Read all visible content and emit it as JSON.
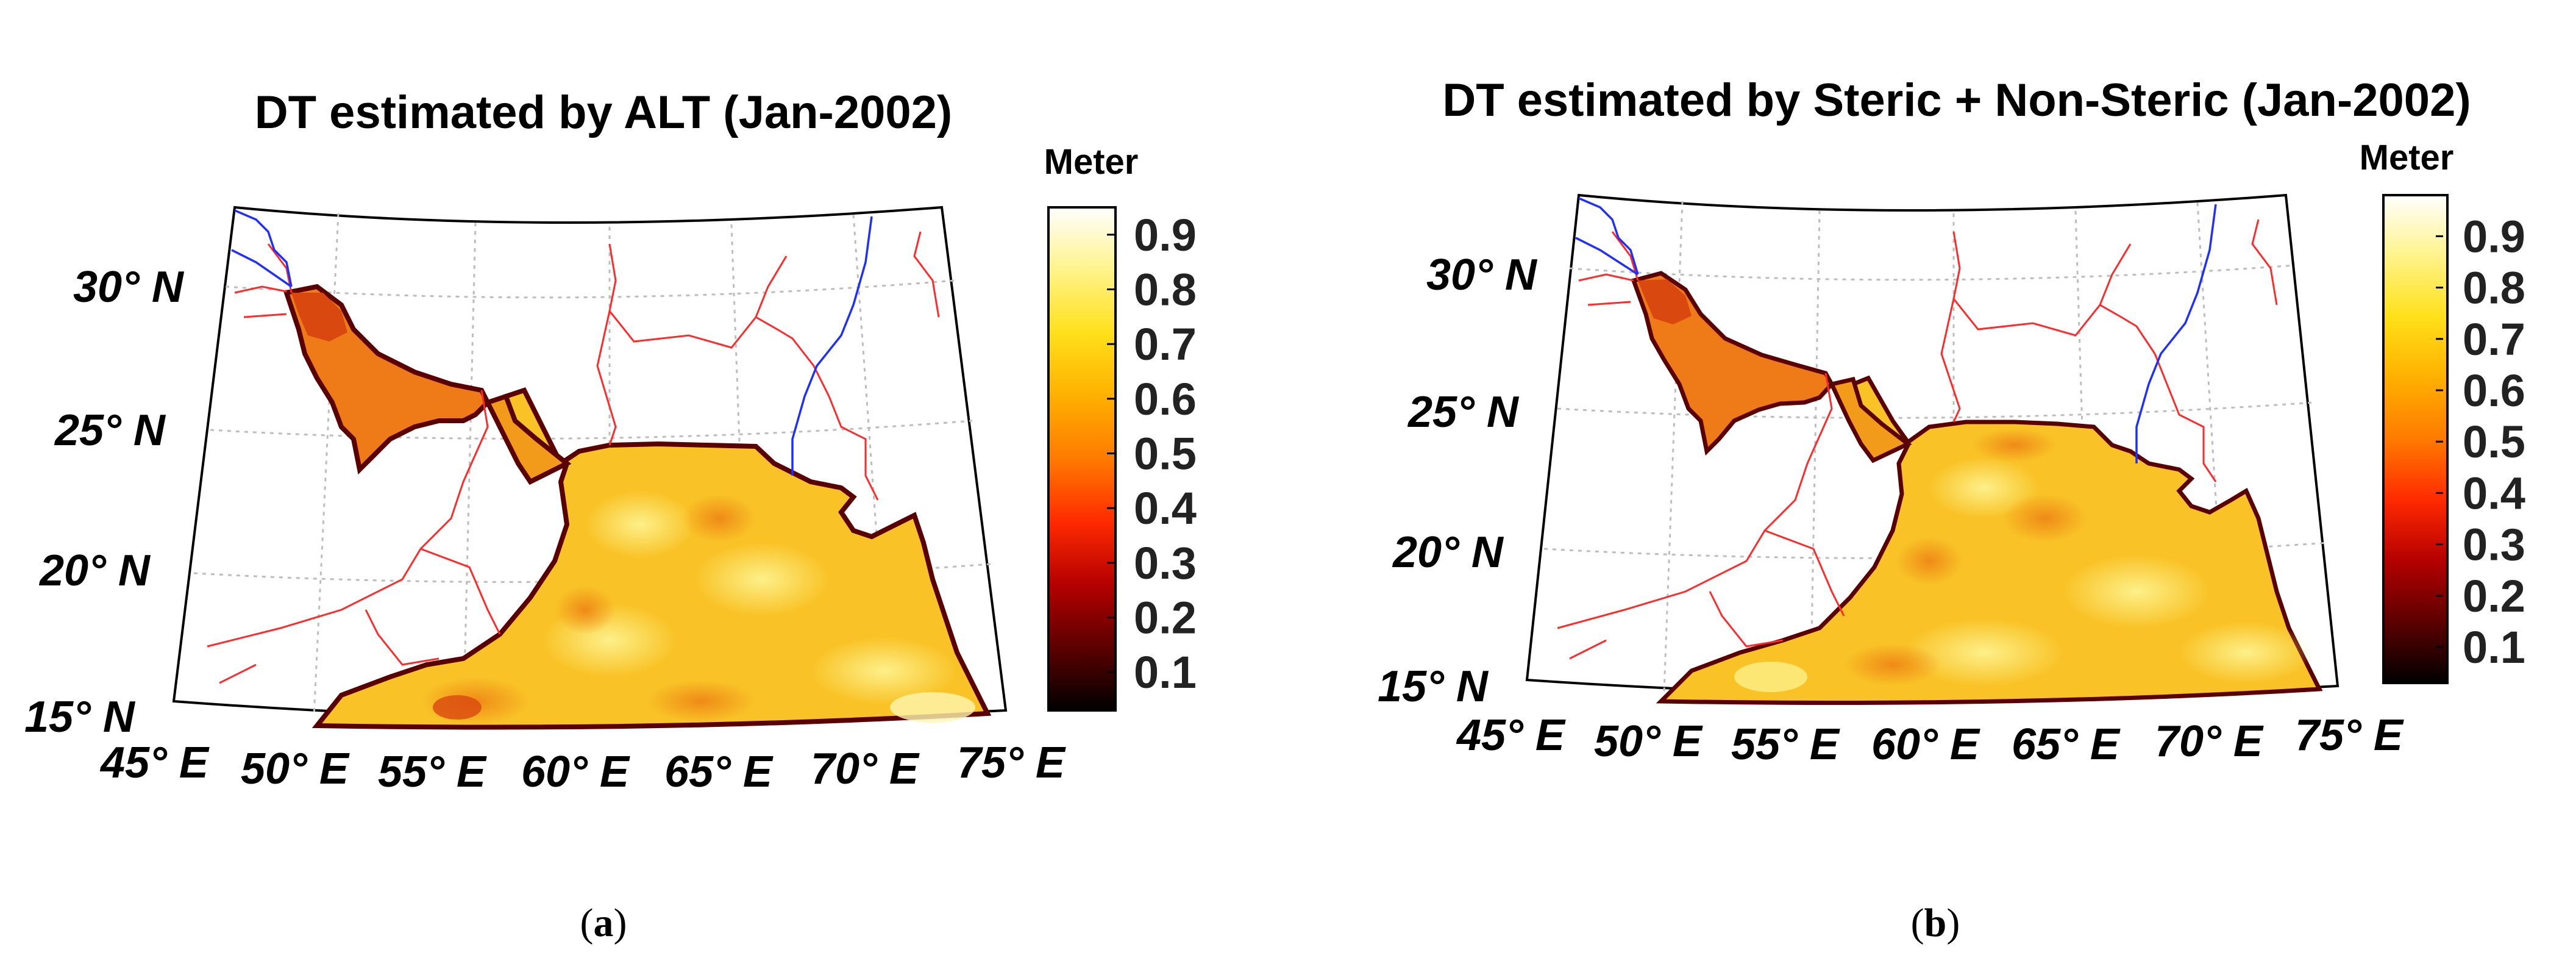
{
  "colors": {
    "ocean_main": "#f9c327",
    "ocean_light": "#fbe04a",
    "ocean_orange": "#f29a1a",
    "gulf": "#ee7a18",
    "gulf_dark": "#d9480f",
    "coast": "#5a0000",
    "land": "#ffffff",
    "border": "#ff2a2a",
    "river": "#1f2fff",
    "grid": "#bdbdbd"
  },
  "colorbar_stops": [
    "#000000",
    "#5c0000",
    "#b40000",
    "#ff2a00",
    "#ff7a00",
    "#ffb000",
    "#ffe01a",
    "#fff38a",
    "#ffffff"
  ],
  "panels": [
    {
      "id": "a",
      "title": "DT estimated by ALT (Jan-2002)",
      "unit": "Meter",
      "caption": "a",
      "lat_labels": [
        "30° N",
        "25° N",
        "20° N",
        "15° N"
      ],
      "lon_labels": [
        "45° E",
        "50° E",
        "55° E",
        "60° E",
        "65° E",
        "70° E",
        "75° E"
      ],
      "colorbar": {
        "ticks": [
          "0.9",
          "0.8",
          "0.7",
          "0.6",
          "0.5",
          "0.4",
          "0.3",
          "0.2",
          "0.1"
        ],
        "min": 0.03,
        "max": 0.95
      }
    },
    {
      "id": "b",
      "title": "DT estimated by Steric + Non-Steric (Jan-2002)",
      "unit": "Meter",
      "caption": "b",
      "lat_labels": [
        "30° N",
        "25° N",
        "20° N",
        "15° N"
      ],
      "lon_labels": [
        "45° E",
        "50° E",
        "55° E",
        "60° E",
        "65° E",
        "70° E",
        "75° E"
      ],
      "colorbar": {
        "ticks": [
          "0.9",
          "0.8",
          "0.7",
          "0.6",
          "0.5",
          "0.4",
          "0.3",
          "0.2",
          "0.1"
        ],
        "min": 0.03,
        "max": 0.98
      }
    }
  ]
}
